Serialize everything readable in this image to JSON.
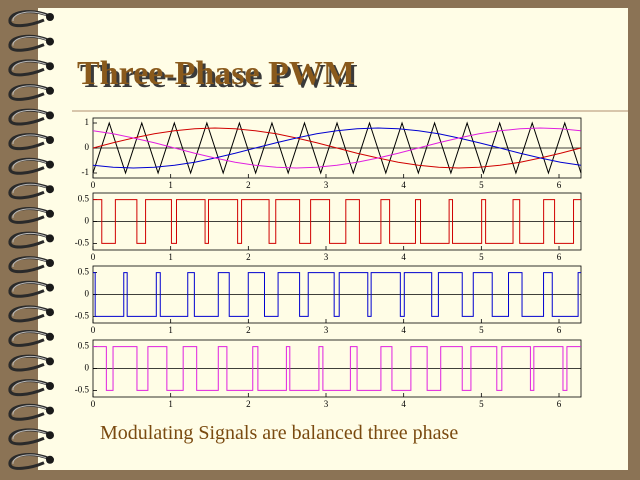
{
  "title": "Three-Phase PWM",
  "caption": "Modulating Signals are balanced three phase",
  "chart_data": [
    {
      "type": "line",
      "xlim": [
        0,
        6.2832
      ],
      "ylim": [
        -1.2,
        1.2
      ],
      "xticks": [
        0,
        1,
        2,
        3,
        4,
        5,
        6
      ],
      "yticks": [
        -1,
        0,
        1
      ],
      "zero_line": true,
      "series": [
        {
          "color": "#000000",
          "x": [
            0,
            0.209,
            0.419,
            0.628,
            0.838,
            1.047,
            1.257,
            1.466,
            1.676,
            1.885,
            2.094,
            2.304,
            2.513,
            2.723,
            2.932,
            3.142,
            3.351,
            3.56,
            3.77,
            3.979,
            4.189,
            4.398,
            4.608,
            4.817,
            5.027,
            5.236,
            5.445,
            5.655,
            5.864,
            6.074,
            6.283
          ],
          "values": [
            -1,
            1,
            -1,
            1,
            -1,
            1,
            -1,
            1,
            -1,
            1,
            -1,
            1,
            -1,
            1,
            -1,
            1,
            -1,
            1,
            -1,
            1,
            -1,
            1,
            -1,
            1,
            -1,
            1,
            -1,
            1,
            -1,
            1,
            -1
          ]
        },
        {
          "color": "#d00000",
          "x": [
            0,
            0.26,
            0.52,
            0.79,
            1.05,
            1.31,
            1.57,
            1.83,
            2.09,
            2.36,
            2.62,
            2.88,
            3.14,
            3.4,
            3.67,
            3.93,
            4.19,
            4.45,
            4.71,
            4.97,
            5.24,
            5.5,
            5.76,
            6.02,
            6.28
          ],
          "values": [
            0,
            0.21,
            0.4,
            0.57,
            0.69,
            0.77,
            0.8,
            0.77,
            0.69,
            0.57,
            0.4,
            0.21,
            0,
            -0.21,
            -0.4,
            -0.57,
            -0.69,
            -0.77,
            -0.8,
            -0.77,
            -0.69,
            -0.57,
            -0.4,
            -0.21,
            0
          ]
        },
        {
          "color": "#0000d0",
          "x": [
            0,
            0.26,
            0.52,
            0.79,
            1.05,
            1.31,
            1.57,
            1.83,
            2.09,
            2.36,
            2.62,
            2.88,
            3.14,
            3.4,
            3.67,
            3.93,
            4.19,
            4.45,
            4.71,
            4.97,
            5.24,
            5.5,
            5.76,
            6.02,
            6.28
          ],
          "values": [
            -0.69,
            -0.77,
            -0.8,
            -0.77,
            -0.69,
            -0.57,
            -0.4,
            -0.21,
            0,
            0.21,
            0.4,
            0.57,
            0.69,
            0.77,
            0.8,
            0.77,
            0.69,
            0.57,
            0.4,
            0.21,
            0,
            -0.21,
            -0.4,
            -0.57,
            -0.69
          ]
        },
        {
          "color": "#e020e0",
          "x": [
            0,
            0.26,
            0.52,
            0.79,
            1.05,
            1.31,
            1.57,
            1.83,
            2.09,
            2.36,
            2.62,
            2.88,
            3.14,
            3.4,
            3.67,
            3.93,
            4.19,
            4.45,
            4.71,
            4.97,
            5.24,
            5.5,
            5.76,
            6.02,
            6.28
          ],
          "values": [
            0.69,
            0.57,
            0.4,
            0.21,
            0,
            -0.21,
            -0.4,
            -0.57,
            -0.69,
            -0.77,
            -0.8,
            -0.77,
            -0.69,
            -0.57,
            -0.4,
            -0.21,
            0,
            0.21,
            0.4,
            0.57,
            0.69,
            0.77,
            0.8,
            0.77,
            0.69
          ]
        }
      ]
    },
    {
      "type": "step",
      "xlim": [
        0,
        6.2832
      ],
      "ylim": [
        -0.65,
        0.65
      ],
      "xticks": [
        0,
        1,
        2,
        3,
        4,
        5,
        6
      ],
      "yticks": [
        -0.5,
        0,
        0.5
      ],
      "zero_line": true,
      "series": [
        {
          "color": "#d00000",
          "x": [
            0,
            0.113,
            0.288,
            0.565,
            0.677,
            1.01,
            1.075,
            1.443,
            1.487,
            1.862,
            1.913,
            2.267,
            2.353,
            2.66,
            2.802,
            3.046,
            3.255,
            3.43,
            3.707,
            3.819,
            4.152,
            4.217,
            4.585,
            4.629,
            5.004,
            5.055,
            5.408,
            5.494,
            5.802,
            5.943,
            6.187,
            6.283
          ],
          "values": [
            0.5,
            -0.5,
            0.5,
            -0.5,
            0.5,
            -0.5,
            0.5,
            -0.5,
            0.5,
            -0.5,
            0.5,
            -0.5,
            0.5,
            -0.5,
            0.5,
            -0.5,
            0.5,
            -0.5,
            0.5,
            -0.5,
            0.5,
            -0.5,
            0.5,
            -0.5,
            0.5,
            -0.5,
            0.5,
            -0.5,
            0.5,
            -0.5,
            0.5,
            0.5
          ]
        }
      ]
    },
    {
      "type": "step",
      "xlim": [
        0,
        6.2832
      ],
      "ylim": [
        -0.65,
        0.65
      ],
      "xticks": [
        0,
        1,
        2,
        3,
        4,
        5,
        6
      ],
      "yticks": [
        -0.5,
        0,
        0.5
      ],
      "zero_line": true,
      "series": [
        {
          "color": "#0000d0",
          "x": [
            0,
            0.028,
            0.396,
            0.44,
            0.815,
            0.866,
            1.22,
            1.305,
            1.613,
            1.754,
            1.999,
            2.208,
            2.383,
            2.66,
            2.771,
            3.105,
            3.17,
            3.538,
            3.581,
            3.957,
            4.008,
            4.361,
            4.447,
            4.754,
            4.896,
            5.14,
            5.35,
            5.524,
            5.801,
            5.913,
            6.246,
            6.283
          ],
          "values": [
            0.5,
            -0.5,
            0.5,
            -0.5,
            0.5,
            -0.5,
            0.5,
            -0.5,
            0.5,
            -0.5,
            0.5,
            -0.5,
            0.5,
            -0.5,
            0.5,
            -0.5,
            0.5,
            -0.5,
            0.5,
            -0.5,
            0.5,
            -0.5,
            0.5,
            -0.5,
            0.5,
            -0.5,
            0.5,
            -0.5,
            0.5,
            -0.5,
            0.5,
            0.5
          ]
        }
      ]
    },
    {
      "type": "step",
      "xlim": [
        0,
        6.2832
      ],
      "ylim": [
        -0.65,
        0.65
      ],
      "xticks": [
        0,
        1,
        2,
        3,
        4,
        5,
        6
      ],
      "yticks": [
        -0.5,
        0,
        0.5
      ],
      "zero_line": true,
      "series": [
        {
          "color": "#e020e0",
          "x": [
            0,
            0.172,
            0.258,
            0.566,
            0.707,
            0.951,
            1.161,
            1.335,
            1.613,
            1.724,
            2.057,
            2.123,
            2.49,
            2.534,
            2.909,
            2.96,
            3.314,
            3.4,
            3.707,
            3.849,
            4.093,
            4.302,
            4.477,
            4.754,
            4.866,
            5.199,
            5.264,
            5.632,
            5.676,
            6.051,
            6.102,
            6.283
          ],
          "values": [
            0.5,
            -0.5,
            0.5,
            -0.5,
            0.5,
            -0.5,
            0.5,
            -0.5,
            0.5,
            -0.5,
            0.5,
            -0.5,
            0.5,
            -0.5,
            0.5,
            -0.5,
            0.5,
            -0.5,
            0.5,
            -0.5,
            0.5,
            -0.5,
            0.5,
            -0.5,
            0.5,
            -0.5,
            0.5,
            -0.5,
            0.5,
            -0.5,
            0.5,
            0.5
          ]
        }
      ]
    }
  ]
}
